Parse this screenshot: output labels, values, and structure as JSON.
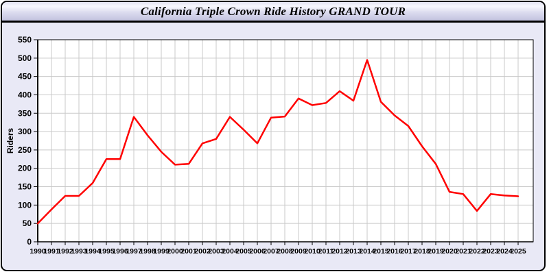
{
  "window": {
    "title": "California Triple Crown Ride History GRAND TOUR"
  },
  "chart_data": {
    "type": "line",
    "title": "California Triple Crown Ride History GRAND TOUR",
    "xlabel": "",
    "ylabel": "Riders",
    "x": [
      1990,
      1991,
      1992,
      1993,
      1994,
      1995,
      1996,
      1997,
      1998,
      1999,
      2000,
      2001,
      2002,
      2003,
      2004,
      2005,
      2006,
      2007,
      2008,
      2009,
      2010,
      2011,
      2012,
      2013,
      2014,
      2015,
      2016,
      2017,
      2018,
      2019,
      2020,
      2021,
      2022,
      2023,
      2024,
      2025
    ],
    "series": [
      {
        "name": "Riders",
        "values": [
          50,
          88,
          125,
          125,
          160,
          225,
          225,
          340,
          290,
          245,
          210,
          212,
          268,
          280,
          340,
          305,
          268,
          338,
          341,
          390,
          372,
          378,
          410,
          384,
          495,
          381,
          344,
          315,
          260,
          212,
          136,
          130,
          84,
          130,
          126,
          124
        ]
      }
    ],
    "ylim": [
      0,
      550
    ],
    "ytick_step": 50,
    "xtick_step": 1,
    "grid": true,
    "legend": false
  },
  "style": {
    "page_bg": "#ffffff",
    "panel_bg": "#e9e9f6",
    "plot_bg": "#ffffff",
    "grid_color": "#c9c9c9",
    "axis_color": "#000000",
    "tick_label_color": "#000000",
    "line_color": "#ff0000"
  }
}
